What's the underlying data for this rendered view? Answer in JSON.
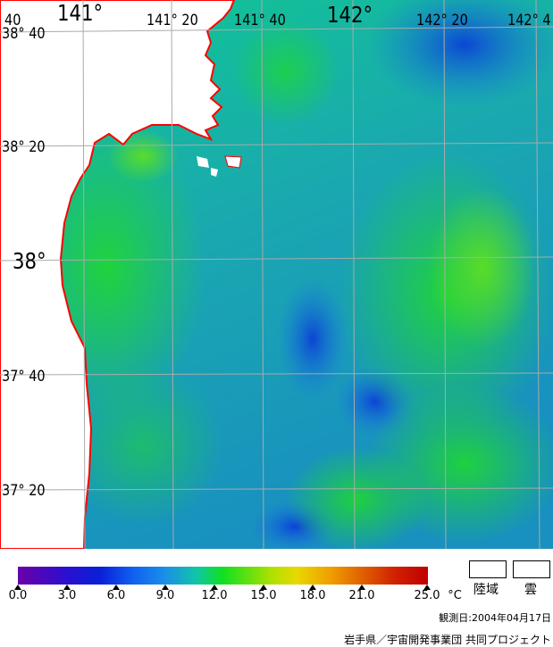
{
  "map": {
    "lon_labels": [
      "141°",
      "141° 20",
      "141° 40",
      "142°",
      "142° 20",
      "142° 4"
    ],
    "lat_labels": [
      "38° 40",
      "38° 20",
      "38°",
      "37° 40",
      "37° 20"
    ],
    "corner_label": "40",
    "land_color": "#ffffff",
    "coastline_color": "#ff0000",
    "grid_color": "#aaaaaa"
  },
  "colorbar": {
    "ticks": [
      "0.0",
      "3.0",
      "6.0",
      "9.0",
      "12.0",
      "15.0",
      "18.0",
      "21.0",
      "25.0"
    ],
    "unit": "°C"
  },
  "legend": {
    "land_label": "陸域",
    "cloud_label": "雲"
  },
  "footer": {
    "observation_date": "観測日:2004年04月17日",
    "credit": "岩手県／宇宙開発事業団  共同プロジェクト"
  }
}
